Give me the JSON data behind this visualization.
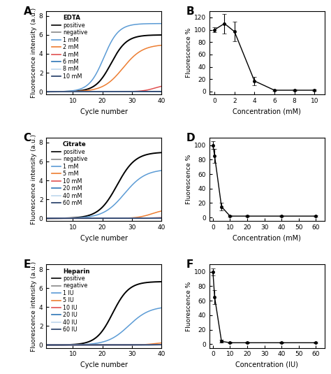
{
  "panels": {
    "A": {
      "label": "A",
      "type": "pcr",
      "reagent": "EDTA",
      "ylabel": "Fluorescence intensity (a.u.)",
      "xlabel": "Cycle number",
      "ylim": [
        -0.3,
        8.5
      ],
      "xlim": [
        1,
        40
      ],
      "xticks": [
        10,
        20,
        30,
        40
      ],
      "yticks": [
        0,
        2,
        4,
        6,
        8
      ],
      "curves": [
        {
          "label": "positive",
          "color": "#000000",
          "max": 6.0,
          "midpoint": 23.0,
          "steepness": 0.38
        },
        {
          "label": "negative",
          "color": "#888888",
          "max": 0.0,
          "midpoint": 23.0,
          "steepness": 0.38
        },
        {
          "label": "1 mM",
          "color": "#5B9BD5",
          "max": 7.2,
          "midpoint": 20.5,
          "steepness": 0.4
        },
        {
          "label": "2 mM",
          "color": "#ED7D31",
          "max": 5.0,
          "midpoint": 27.0,
          "steepness": 0.3
        },
        {
          "label": "4 mM",
          "color": "#E05050",
          "max": 0.8,
          "midpoint": 38.0,
          "steepness": 0.45
        },
        {
          "label": "6 mM",
          "color": "#2E75B6",
          "max": 0.03,
          "midpoint": 23.0,
          "steepness": 0.38
        },
        {
          "label": "8 mM",
          "color": "#BDD7EE",
          "max": 0.03,
          "midpoint": 23.0,
          "steepness": 0.38
        },
        {
          "label": "10 mM",
          "color": "#1F3864",
          "max": 0.03,
          "midpoint": 23.0,
          "steepness": 0.38
        }
      ]
    },
    "B": {
      "label": "B",
      "type": "dose",
      "ylabel": "Fluorescence %",
      "xlabel": "Concentration (mM)",
      "ylim": [
        -5,
        130
      ],
      "xlim": [
        -0.5,
        11
      ],
      "xticks": [
        0,
        2,
        4,
        6,
        8,
        10
      ],
      "yticks": [
        0,
        20,
        40,
        60,
        80,
        100,
        120
      ],
      "x": [
        0,
        1,
        2,
        4,
        6,
        8,
        10
      ],
      "y": [
        100,
        110,
        97,
        17,
        2,
        2,
        2
      ],
      "yerr": [
        4,
        16,
        16,
        7,
        1,
        1,
        1
      ]
    },
    "C": {
      "label": "C",
      "type": "pcr",
      "reagent": "Citrate",
      "ylabel": "Fluorescence intensity (a.u.)",
      "xlabel": "Cycle number",
      "ylim": [
        -0.3,
        8.5
      ],
      "xlim": [
        1,
        40
      ],
      "xticks": [
        10,
        20,
        30,
        40
      ],
      "yticks": [
        0,
        2,
        4,
        6,
        8
      ],
      "curves": [
        {
          "label": "positive",
          "color": "#000000",
          "max": 7.0,
          "midpoint": 25.0,
          "steepness": 0.32
        },
        {
          "label": "negative",
          "color": "#888888",
          "max": 0.0,
          "midpoint": 25.0,
          "steepness": 0.32
        },
        {
          "label": "1 mM",
          "color": "#5B9BD5",
          "max": 5.2,
          "midpoint": 27.5,
          "steepness": 0.28
        },
        {
          "label": "5 mM",
          "color": "#ED7D31",
          "max": 1.0,
          "midpoint": 37.0,
          "steepness": 0.4
        },
        {
          "label": "10 mM",
          "color": "#E05050",
          "max": 0.1,
          "midpoint": 37.0,
          "steepness": 0.4
        },
        {
          "label": "20 mM",
          "color": "#2E75B6",
          "max": 0.03,
          "midpoint": 37.0,
          "steepness": 0.4
        },
        {
          "label": "40 mM",
          "color": "#BDD7EE",
          "max": 0.03,
          "midpoint": 37.0,
          "steepness": 0.4
        },
        {
          "label": "60 mM",
          "color": "#1F3864",
          "max": 0.03,
          "midpoint": 37.0,
          "steepness": 0.4
        }
      ]
    },
    "D": {
      "label": "D",
      "type": "dose",
      "ylabel": "Fluorescence %",
      "xlabel": "Concentration (mM)",
      "ylim": [
        -5,
        110
      ],
      "xlim": [
        -2,
        65
      ],
      "xticks": [
        0,
        10,
        20,
        30,
        40,
        50,
        60
      ],
      "yticks": [
        0,
        20,
        40,
        60,
        80,
        100
      ],
      "x": [
        0,
        1,
        5,
        10,
        20,
        40,
        60
      ],
      "y": [
        100,
        85,
        15,
        2,
        2,
        2,
        2
      ],
      "yerr": [
        5,
        10,
        5,
        1,
        1,
        1,
        1
      ]
    },
    "E": {
      "label": "E",
      "type": "pcr",
      "reagent": "Heparin",
      "ylabel": "Fluorescence intensity (a.u.)",
      "xlabel": "Cycle number",
      "ylim": [
        -0.3,
        8.5
      ],
      "xlim": [
        1,
        40
      ],
      "xticks": [
        10,
        20,
        30,
        40
      ],
      "yticks": [
        0,
        2,
        4,
        6,
        8
      ],
      "curves": [
        {
          "label": "positive",
          "color": "#000000",
          "max": 6.7,
          "midpoint": 23.5,
          "steepness": 0.36
        },
        {
          "label": "negative",
          "color": "#888888",
          "max": 0.0,
          "midpoint": 23.5,
          "steepness": 0.36
        },
        {
          "label": "1 IU",
          "color": "#5B9BD5",
          "max": 4.1,
          "midpoint": 29.0,
          "steepness": 0.28
        },
        {
          "label": "5 IU",
          "color": "#ED7D31",
          "max": 0.3,
          "midpoint": 38.0,
          "steepness": 0.45
        },
        {
          "label": "10 IU",
          "color": "#E05050",
          "max": 0.08,
          "midpoint": 38.0,
          "steepness": 0.45
        },
        {
          "label": "20 IU",
          "color": "#2E75B6",
          "max": 0.03,
          "midpoint": 38.0,
          "steepness": 0.45
        },
        {
          "label": "40 IU",
          "color": "#BDD7EE",
          "max": 0.03,
          "midpoint": 38.0,
          "steepness": 0.45
        },
        {
          "label": "60 IU",
          "color": "#1F3864",
          "max": 0.03,
          "midpoint": 38.0,
          "steepness": 0.45
        }
      ]
    },
    "F": {
      "label": "F",
      "type": "dose",
      "ylabel": "Fluorescence %",
      "xlabel": "Concentration (IU)",
      "ylim": [
        -5,
        110
      ],
      "xlim": [
        -2,
        65
      ],
      "xticks": [
        0,
        10,
        20,
        30,
        40,
        50,
        60
      ],
      "yticks": [
        0,
        20,
        40,
        60,
        80,
        100
      ],
      "x": [
        0,
        1,
        5,
        10,
        20,
        40,
        60
      ],
      "y": [
        100,
        65,
        4,
        2,
        2,
        2,
        2
      ],
      "yerr": [
        5,
        10,
        2,
        1,
        1,
        1,
        1
      ]
    }
  }
}
